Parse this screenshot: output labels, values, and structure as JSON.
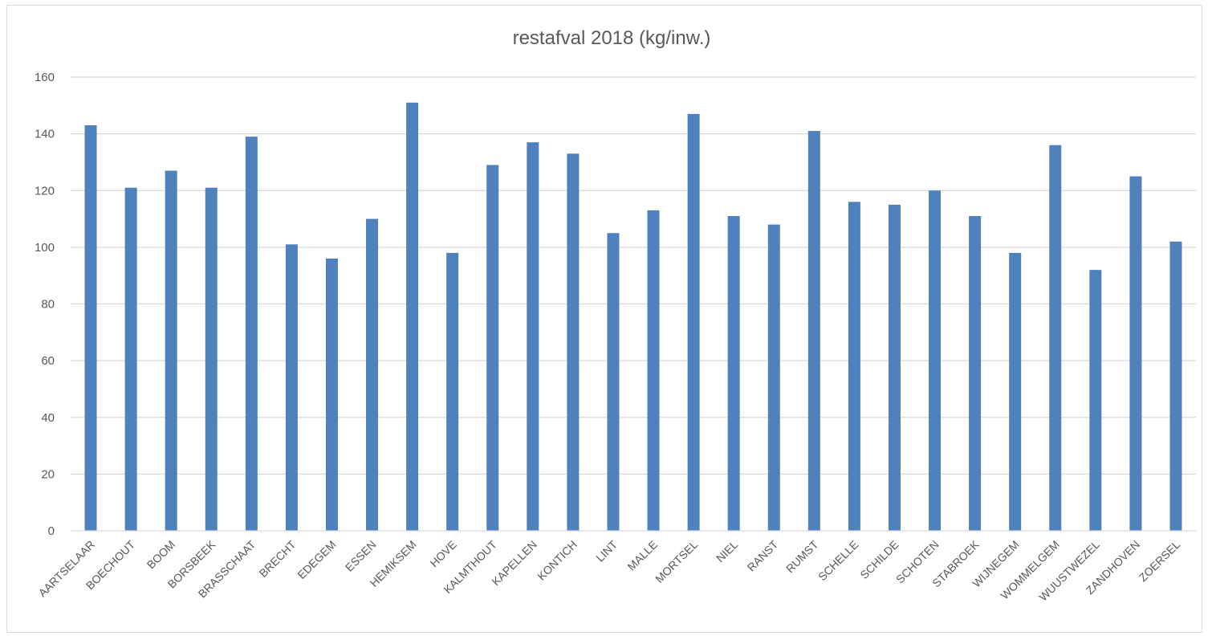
{
  "chart_data": {
    "type": "bar",
    "title": "restafval 2018 (kg/inw.)",
    "xlabel": "",
    "ylabel": "",
    "ylim": [
      0,
      160
    ],
    "yticks": [
      0,
      20,
      40,
      60,
      80,
      100,
      120,
      140,
      160
    ],
    "grid": true,
    "legend": "none",
    "bar_color": "#4f81bd",
    "grid_color": "#d9d9d9",
    "categories": [
      "AARTSELAAR",
      "BOECHOUT",
      "BOOM",
      "BORSBEEK",
      "BRASSCHAAT",
      "BRECHT",
      "EDEGEM",
      "ESSEN",
      "HEMIKSEM",
      "HOVE",
      "KALMTHOUT",
      "KAPELLEN",
      "KONTICH",
      "LINT",
      "MALLE",
      "MORTSEL",
      "NIEL",
      "RANST",
      "RUMST",
      "SCHELLE",
      "SCHILDE",
      "SCHOTEN",
      "STABROEK",
      "WIJNEGEM",
      "WOMMELGEM",
      "WUUSTWEZEL",
      "ZANDHOVEN",
      "ZOERSEL"
    ],
    "values": [
      143,
      121,
      127,
      121,
      139,
      101,
      96,
      110,
      151,
      98,
      129,
      137,
      133,
      105,
      113,
      147,
      111,
      108,
      141,
      116,
      115,
      120,
      111,
      98,
      136,
      92,
      125,
      102
    ]
  }
}
